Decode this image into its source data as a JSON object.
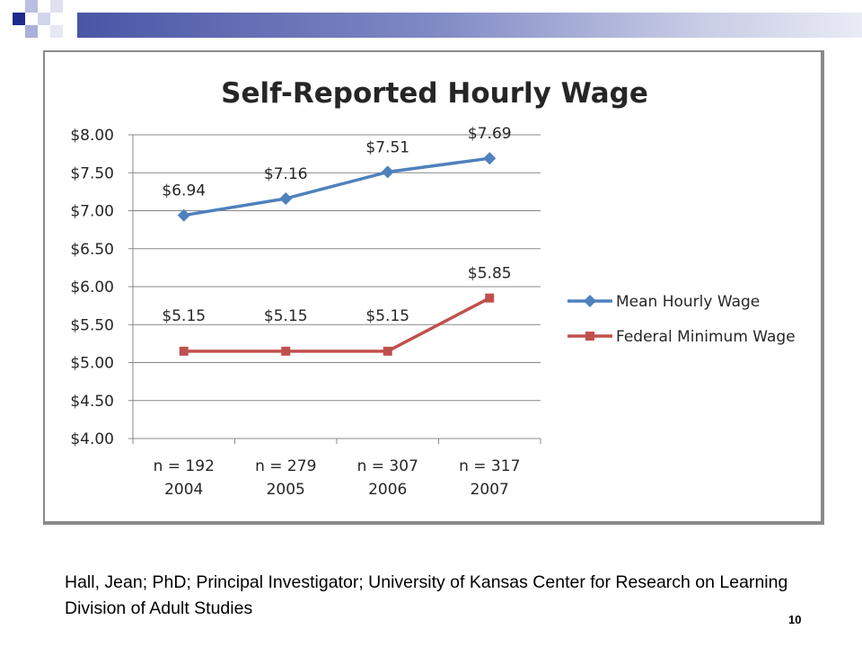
{
  "slide": {
    "citation": "Hall, Jean; PhD; Principal Investigator; University of Kansas Center for Research on Learning Division of Adult Studies",
    "page_number": "10"
  },
  "chart_data": {
    "type": "line",
    "title": "Self-Reported Hourly Wage",
    "categories": [
      [
        "n = 192",
        "2004"
      ],
      [
        "n = 279",
        "2005"
      ],
      [
        "n = 307",
        "2006"
      ],
      [
        "n = 317",
        "2007"
      ]
    ],
    "series": [
      {
        "name": "Mean Hourly Wage",
        "color": "#4f81bd",
        "marker": "diamond",
        "values": [
          6.94,
          7.16,
          7.51,
          7.69
        ],
        "labels": [
          "$6.94",
          "$7.16",
          "$7.51",
          "$7.69"
        ]
      },
      {
        "name": "Federal Minimum Wage",
        "color": "#c0504d",
        "marker": "square",
        "values": [
          5.15,
          5.15,
          5.15,
          5.85
        ],
        "labels": [
          "$5.15",
          "$5.15",
          "$5.15",
          "$5.85"
        ]
      }
    ],
    "ylim": [
      4.0,
      8.0
    ],
    "yticks": [
      "$4.00",
      "$4.50",
      "$5.00",
      "$5.50",
      "$6.00",
      "$6.50",
      "$7.00",
      "$7.50",
      "$8.00"
    ],
    "grid": true,
    "legend_position": "right"
  }
}
